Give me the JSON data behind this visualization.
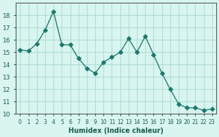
{
  "x": [
    0,
    1,
    2,
    3,
    4,
    5,
    6,
    7,
    8,
    9,
    10,
    11,
    12,
    13,
    14,
    15,
    16,
    17,
    18,
    19,
    20,
    21,
    22,
    23
  ],
  "y": [
    15.2,
    15.1,
    15.7,
    16.8,
    18.3,
    15.6,
    15.6,
    14.5,
    13.7,
    13.3,
    14.2,
    14.6,
    15.0,
    16.1,
    15.0,
    16.3,
    14.8,
    13.3,
    12.0,
    10.8,
    10.5,
    10.5,
    10.3,
    10.4
  ],
  "xlabel": "Humidex (Indice chaleur)",
  "ylim": [
    10,
    19
  ],
  "xlim": [
    0,
    23
  ],
  "yticks": [
    10,
    11,
    12,
    13,
    14,
    15,
    16,
    17,
    18
  ],
  "xtick_labels": [
    "0",
    "1",
    "2",
    "3",
    "4",
    "5",
    "6",
    "7",
    "8",
    "9",
    "10",
    "11",
    "12",
    "13",
    "14",
    "15",
    "16",
    "17",
    "18",
    "19",
    "20",
    "21",
    "22",
    "23"
  ],
  "line_color": "#1a7a6e",
  "marker": "D",
  "marker_size": 3,
  "bg_color": "#d9f5f0",
  "grid_color": "#b0ddd6",
  "axes_color": "#555555",
  "font_color": "#1a5a50"
}
